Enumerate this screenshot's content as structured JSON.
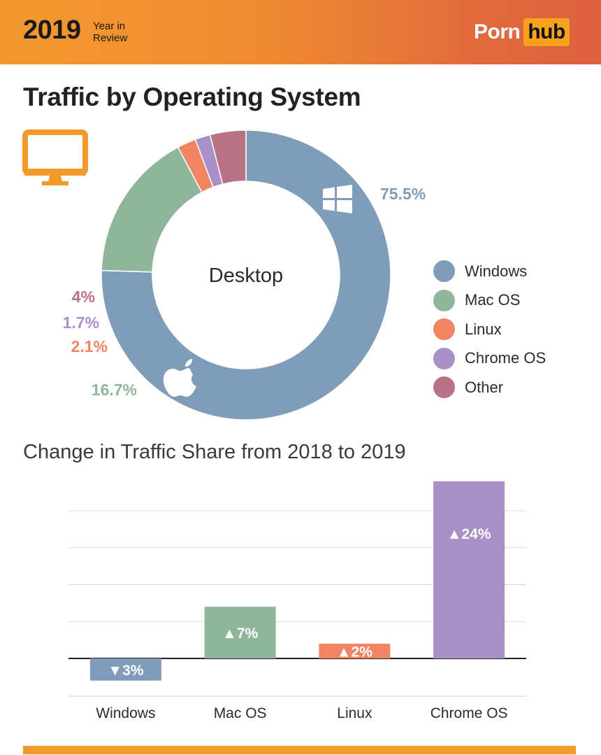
{
  "header": {
    "year": "2019",
    "tagline_line1": "Year in",
    "tagline_line2": "Review",
    "logo_part1": "Porn",
    "logo_part2": "hub"
  },
  "page": {
    "title": "Traffic by Operating System",
    "device_icon": "desktop-monitor-icon"
  },
  "colors": {
    "windows": "#7f9db8",
    "mac_os": "#8fb59b",
    "linux": "#f08463",
    "chrome_os": "#a991c8",
    "other": "#b97186",
    "accent": "#f39a2b"
  },
  "chart_data": [
    {
      "type": "pie",
      "variant": "donut",
      "center_label": "Desktop",
      "legend_position": "right",
      "slices": [
        {
          "label": "Windows",
          "value": 75.5,
          "display": "75.5%",
          "color": "#7f9db8",
          "icon": "windows-logo-icon"
        },
        {
          "label": "Mac OS",
          "value": 16.7,
          "display": "16.7%",
          "color": "#8fb59b",
          "icon": "apple-logo-icon"
        },
        {
          "label": "Linux",
          "value": 2.1,
          "display": "2.1%",
          "color": "#f08463"
        },
        {
          "label": "Chrome OS",
          "value": 1.7,
          "display": "1.7%",
          "color": "#a991c8"
        },
        {
          "label": "Other",
          "value": 4,
          "display": "4%",
          "color": "#b97186"
        }
      ]
    },
    {
      "type": "bar",
      "title": "Change in Traffic Share from 2018 to 2019",
      "categories": [
        "Windows",
        "Mac OS",
        "Linux",
        "Chrome OS"
      ],
      "values": [
        -3,
        7,
        2,
        24
      ],
      "value_labels": [
        "▼3%",
        "▲7%",
        "▲2%",
        "▲24%"
      ],
      "colors": [
        "#7f9db8",
        "#8fb59b",
        "#f08463",
        "#a991c8"
      ],
      "ylim": [
        -4,
        24
      ],
      "grid": true
    }
  ]
}
